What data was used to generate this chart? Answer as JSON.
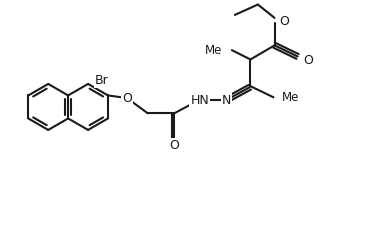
{
  "bg_color": "#ffffff",
  "line_color": "#1a1a1a",
  "bond_lw": 1.5,
  "font_size": 8.5,
  "figsize": [
    3.71,
    2.25
  ],
  "dpi": 100,
  "xlim": [
    0,
    10
  ],
  "ylim": [
    0,
    6
  ]
}
